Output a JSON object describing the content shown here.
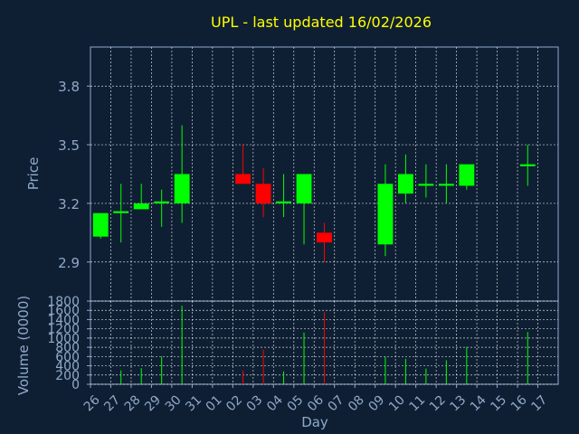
{
  "chart_data": [
    {
      "type": "candlestick",
      "title": "UPL - last updated 16/02/2026",
      "ylabel": "Price",
      "xlabel": "",
      "ylim": [
        2.7,
        4.0
      ],
      "yticks": [
        2.9,
        3.2,
        3.5,
        3.8
      ],
      "ytick_labels": [
        "2.9",
        "3.2",
        "3.5",
        "3.8"
      ],
      "grid": true,
      "colors": {
        "up": "#00ff00",
        "down": "#ff0000",
        "background": "#0f1f33",
        "text": "#8fa9c8",
        "title": "#ffff00",
        "grid": "#ffffff"
      },
      "candles": [
        {
          "day": "26",
          "open": 3.03,
          "high": 3.15,
          "low": 3.02,
          "close": 3.15
        },
        {
          "day": "27",
          "open": 3.15,
          "high": 3.3,
          "low": 3.0,
          "close": 3.16
        },
        {
          "day": "28",
          "open": 3.17,
          "high": 3.3,
          "low": 3.17,
          "close": 3.2
        },
        {
          "day": "29",
          "open": 3.2,
          "high": 3.27,
          "low": 3.08,
          "close": 3.21
        },
        {
          "day": "30",
          "open": 3.2,
          "high": 3.6,
          "low": 3.1,
          "close": 3.35
        },
        {
          "day": "02",
          "open": 3.35,
          "high": 3.5,
          "low": 3.3,
          "close": 3.3
        },
        {
          "day": "03",
          "open": 3.3,
          "high": 3.38,
          "low": 3.13,
          "close": 3.2
        },
        {
          "day": "04",
          "open": 3.2,
          "high": 3.35,
          "low": 3.13,
          "close": 3.21
        },
        {
          "day": "05",
          "open": 3.2,
          "high": 3.35,
          "low": 2.99,
          "close": 3.35
        },
        {
          "day": "06",
          "open": 3.05,
          "high": 3.1,
          "low": 2.9,
          "close": 3.0
        },
        {
          "day": "09",
          "open": 2.99,
          "high": 3.4,
          "low": 2.93,
          "close": 3.3
        },
        {
          "day": "10",
          "open": 3.25,
          "high": 3.45,
          "low": 3.2,
          "close": 3.35
        },
        {
          "day": "11",
          "open": 3.29,
          "high": 3.4,
          "low": 3.23,
          "close": 3.3
        },
        {
          "day": "12",
          "open": 3.29,
          "high": 3.4,
          "low": 3.2,
          "close": 3.3
        },
        {
          "day": "13",
          "open": 3.29,
          "high": 3.4,
          "low": 3.27,
          "close": 3.4
        },
        {
          "day": "16",
          "open": 3.39,
          "high": 3.5,
          "low": 3.29,
          "close": 3.4
        }
      ]
    },
    {
      "type": "bar",
      "title": "",
      "ylabel": "Volume (0000)",
      "xlabel": "Day",
      "ylim": [
        0,
        1800
      ],
      "yticks": [
        0,
        200,
        400,
        600,
        800,
        1000,
        1200,
        1400,
        1600,
        1800
      ],
      "ytick_labels": [
        "0",
        "200",
        "400",
        "600",
        "800",
        "1000",
        "1200",
        "1400",
        "1600",
        "1800"
      ],
      "categories": [
        "26",
        "27",
        "28",
        "29",
        "30",
        "31",
        "01",
        "02",
        "03",
        "04",
        "05",
        "06",
        "07",
        "08",
        "09",
        "10",
        "11",
        "12",
        "13",
        "14",
        "15",
        "16",
        "17"
      ],
      "values": [
        0,
        300,
        350,
        600,
        1700,
        0,
        0,
        300,
        750,
        280,
        1120,
        1560,
        0,
        0,
        600,
        550,
        340,
        520,
        810,
        0,
        0,
        1130,
        0
      ],
      "bar_colors": [
        "",
        "#00ff00",
        "#00ff00",
        "#00ff00",
        "#00ff00",
        "",
        "",
        "#ff0000",
        "#ff0000",
        "#00ff00",
        "#00ff00",
        "#ff0000",
        "",
        "",
        "#00ff00",
        "#00ff00",
        "#00ff00",
        "#00ff00",
        "#00ff00",
        "",
        "",
        "#00ff00",
        ""
      ]
    }
  ]
}
